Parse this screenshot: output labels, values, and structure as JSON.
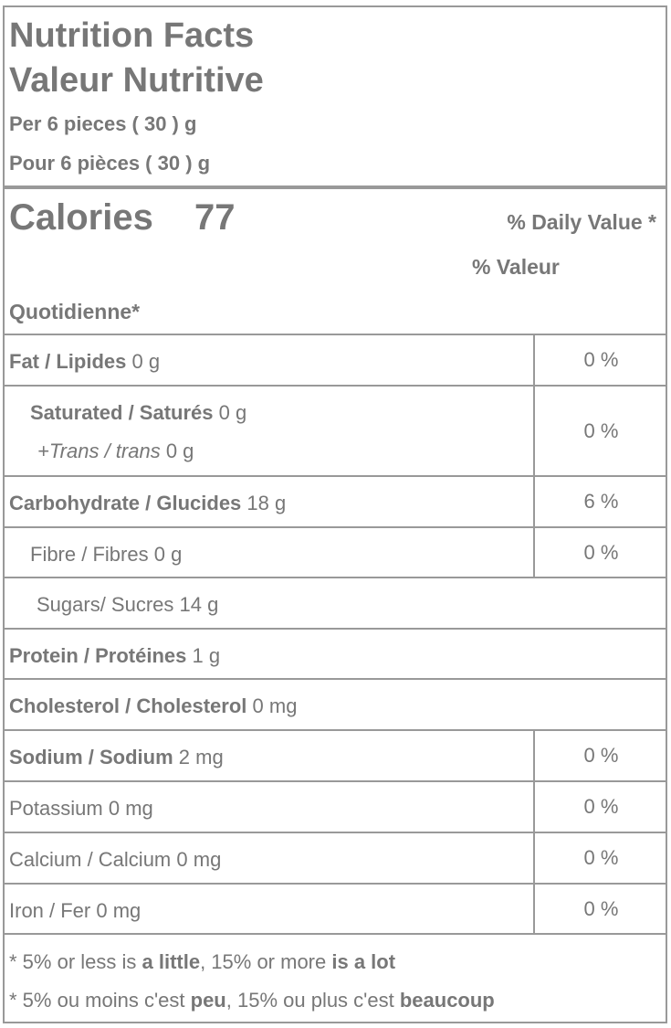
{
  "header": {
    "title": "Nutrition Facts",
    "title_fr": "Valeur Nutritive",
    "serving": "Per 6 pieces ( 30 ) g",
    "serving_fr": "Pour 6 pièces ( 30 ) g"
  },
  "calories": {
    "label": "Calories",
    "value": "77",
    "dv_heading": [
      "% Daily Value *",
      "% Valeur",
      "Quotidienne*"
    ]
  },
  "rows": [
    {
      "nutrient": "Fat / Lipides",
      "amount": "0 g",
      "dv": "0 %"
    },
    {
      "nutrient": "Saturated / Saturés",
      "amount": "0 g",
      "sub": "+Trans / trans",
      "sub_amount": "0 g",
      "dv": "0 %"
    },
    {
      "nutrient": "Carbohydrate / Glucides",
      "amount": "18 g",
      "dv": "6 %"
    },
    {
      "nutrient": "Fibre / Fibres",
      "amount": "0 g",
      "dv": "0 %"
    },
    {
      "nutrient": "Sugars/ Sucres",
      "amount": "14 g"
    },
    {
      "nutrient": "Protein / Protéines",
      "amount": "1 g"
    },
    {
      "nutrient": "Cholesterol / Cholesterol",
      "amount": "0 mg"
    },
    {
      "nutrient": "Sodium / Sodium",
      "amount": "2 mg",
      "dv": "0 %"
    },
    {
      "nutrient": "Potassium",
      "amount": "0 mg",
      "dv": "0 %"
    },
    {
      "nutrient": "Calcium / Calcium",
      "amount": "0 mg",
      "dv": "0 %"
    },
    {
      "nutrient": "Iron / Fer",
      "amount": "0 mg",
      "dv": "0 %"
    }
  ],
  "footer": [
    [
      "* 5% or less is ",
      "a little",
      ", 15% or more ",
      "is a lot"
    ],
    [
      "* 5% ou moins c'est ",
      "peu",
      ", 15% ou plus c'est ",
      "beaucoup"
    ]
  ]
}
